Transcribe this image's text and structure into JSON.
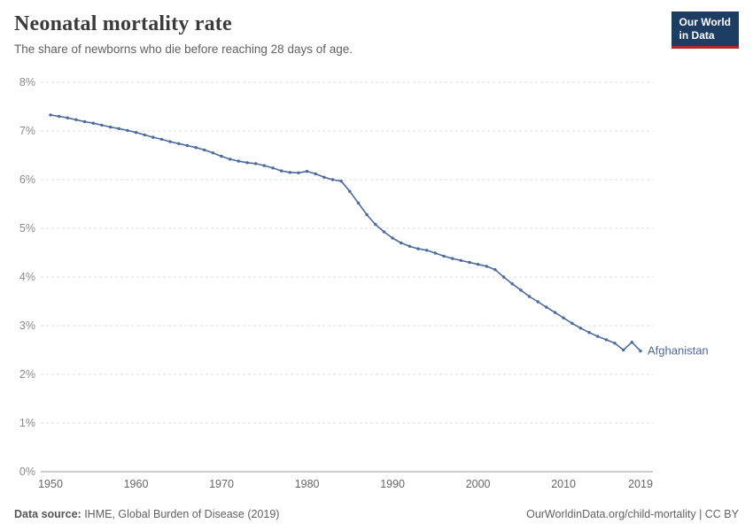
{
  "header": {
    "title": "Neonatal mortality rate",
    "subtitle": "The share of newborns who die before reaching 28 days of age."
  },
  "logo": {
    "line1": "Our World",
    "line2": "in Data"
  },
  "footer": {
    "source_label": "Data source:",
    "source_text": " IHME, Global Burden of Disease (2019)",
    "link": "OurWorldinData.org/child-mortality | CC BY"
  },
  "chart_data": {
    "type": "line",
    "title": "Neonatal mortality rate",
    "subtitle": "The share of newborns who die before reaching 28 days of age.",
    "xlabel": "",
    "ylabel": "",
    "ylim": [
      0,
      8
    ],
    "grid": true,
    "legend_position": "end-of-line",
    "line_color": "#4c6a9c",
    "xticks": [
      1950,
      1960,
      1970,
      1980,
      1990,
      2000,
      2010,
      2019
    ],
    "yticks": [
      {
        "value": 0,
        "label": "0%"
      },
      {
        "value": 1,
        "label": "1%"
      },
      {
        "value": 2,
        "label": "2%"
      },
      {
        "value": 3,
        "label": "3%"
      },
      {
        "value": 4,
        "label": "4%"
      },
      {
        "value": 5,
        "label": "5%"
      },
      {
        "value": 6,
        "label": "6%"
      },
      {
        "value": 7,
        "label": "7%"
      },
      {
        "value": 8,
        "label": "8%"
      }
    ],
    "x": [
      1950,
      1951,
      1952,
      1953,
      1954,
      1955,
      1956,
      1957,
      1958,
      1959,
      1960,
      1961,
      1962,
      1963,
      1964,
      1965,
      1966,
      1967,
      1968,
      1969,
      1970,
      1971,
      1972,
      1973,
      1974,
      1975,
      1976,
      1977,
      1978,
      1979,
      1980,
      1981,
      1982,
      1983,
      1984,
      1985,
      1986,
      1987,
      1988,
      1989,
      1990,
      1991,
      1992,
      1993,
      1994,
      1995,
      1996,
      1997,
      1998,
      1999,
      2000,
      2001,
      2002,
      2003,
      2004,
      2005,
      2006,
      2007,
      2008,
      2009,
      2010,
      2011,
      2012,
      2013,
      2014,
      2015,
      2016,
      2017,
      2018,
      2019
    ],
    "series": [
      {
        "name": "Afghanistan",
        "values": [
          7.33,
          7.3,
          7.27,
          7.23,
          7.19,
          7.16,
          7.12,
          7.08,
          7.05,
          7.01,
          6.97,
          6.92,
          6.87,
          6.83,
          6.78,
          6.74,
          6.7,
          6.66,
          6.61,
          6.55,
          6.48,
          6.42,
          6.38,
          6.35,
          6.33,
          6.29,
          6.24,
          6.18,
          6.15,
          6.14,
          6.17,
          6.12,
          6.05,
          6.0,
          5.97,
          5.76,
          5.52,
          5.28,
          5.08,
          4.93,
          4.8,
          4.7,
          4.63,
          4.58,
          4.55,
          4.49,
          4.43,
          4.38,
          4.34,
          4.3,
          4.26,
          4.22,
          4.15,
          4.0,
          3.86,
          3.73,
          3.6,
          3.49,
          3.38,
          3.27,
          3.16,
          3.05,
          2.95,
          2.86,
          2.78,
          2.71,
          2.64,
          2.5,
          2.66,
          2.48
        ]
      }
    ]
  }
}
